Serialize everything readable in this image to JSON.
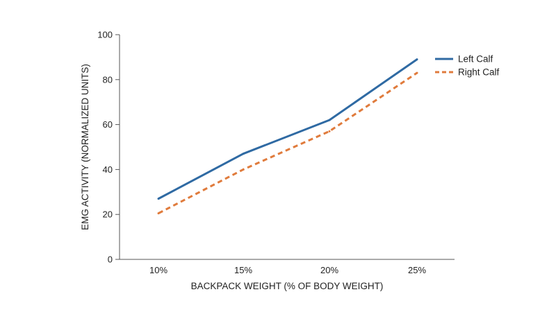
{
  "chart_data": {
    "type": "line",
    "title": "",
    "xlabel": "BACKPACK WEIGHT (% OF BODY WEIGHT)",
    "ylabel": "EMG ACTIVITY (NORMALIZED UNITS)",
    "categories": [
      "10%",
      "15%",
      "20%",
      "25%"
    ],
    "ylim": [
      0,
      100
    ],
    "yticks": [
      0,
      20,
      40,
      60,
      80,
      100
    ],
    "grid": false,
    "legend_position": "top-right",
    "series": [
      {
        "name": "Left Calf",
        "values": [
          27,
          47,
          62,
          89
        ],
        "color": "#2f6aa3",
        "style": "solid"
      },
      {
        "name": "Right Calf",
        "values": [
          20.5,
          40,
          57,
          83
        ],
        "color": "#e07b3c",
        "style": "dashed"
      }
    ]
  }
}
